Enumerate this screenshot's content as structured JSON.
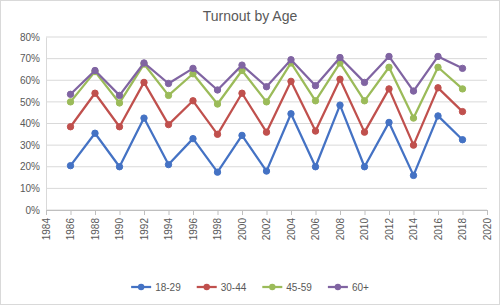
{
  "chart_data": {
    "type": "line",
    "title": "Turnout by Age",
    "x": [
      1986,
      1988,
      1990,
      1992,
      1994,
      1996,
      1998,
      2000,
      2002,
      2004,
      2006,
      2008,
      2010,
      2012,
      2014,
      2016,
      2018
    ],
    "series": [
      {
        "name": "18-29",
        "color": "#4472c4",
        "values": [
          20.5,
          35.5,
          20,
          42.5,
          21,
          33,
          17.5,
          34.5,
          18,
          44.5,
          20,
          48.5,
          20,
          40.5,
          16,
          43.5,
          32.5
        ]
      },
      {
        "name": "30-44",
        "color": "#c0504d",
        "values": [
          38.5,
          54,
          38.5,
          59,
          39.5,
          50.5,
          35,
          54,
          36,
          59.5,
          36.5,
          60.5,
          36,
          56,
          30,
          56.5,
          45.5
        ]
      },
      {
        "name": "45-59",
        "color": "#9bbb59",
        "values": [
          50,
          64,
          49.5,
          67.5,
          53,
          63,
          49,
          64.5,
          50,
          68,
          50.5,
          68,
          50.5,
          66,
          42.5,
          66,
          56
        ]
      },
      {
        "name": "60+",
        "color": "#8064a2",
        "values": [
          53.5,
          64.5,
          53,
          68,
          58.5,
          65.5,
          55.5,
          67,
          57,
          69.5,
          57.5,
          70.5,
          59,
          71,
          55,
          71,
          65.5
        ]
      }
    ],
    "xlim": [
      1984,
      2020
    ],
    "xticks": [
      1984,
      1986,
      1988,
      1990,
      1992,
      1994,
      1996,
      1998,
      2000,
      2002,
      2004,
      2006,
      2008,
      2010,
      2012,
      2014,
      2016,
      2018,
      2020
    ],
    "ylim": [
      0,
      80
    ],
    "yticks": [
      {
        "value": 0,
        "label": "0%"
      },
      {
        "value": 10,
        "label": "10%"
      },
      {
        "value": 20,
        "label": "20%"
      },
      {
        "value": 30,
        "label": "30%"
      },
      {
        "value": 40,
        "label": "40%"
      },
      {
        "value": 50,
        "label": "50%"
      },
      {
        "value": 60,
        "label": "60%"
      },
      {
        "value": 70,
        "label": "70%"
      },
      {
        "value": 80,
        "label": "80%"
      }
    ],
    "grid": true,
    "legend": "bottom",
    "marker": "circle"
  }
}
